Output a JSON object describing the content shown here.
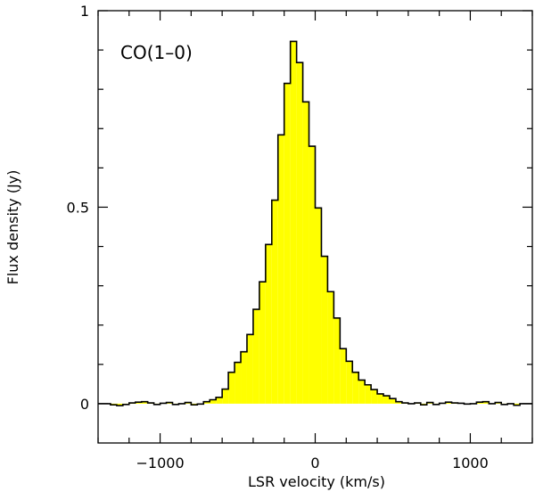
{
  "chart_data": {
    "type": "area",
    "step": true,
    "title": "",
    "annotation": "CO(1–0)",
    "xlabel": "LSR velocity (km/s)",
    "ylabel": "Flux density (Jy)",
    "xlim": [
      -1400,
      1400
    ],
    "ylim": [
      -0.1,
      1.0
    ],
    "xticks_major": [
      -1000,
      0,
      1000
    ],
    "xtick_labels": [
      "−1000",
      "0",
      "1000"
    ],
    "xticks_minor": [
      -1400,
      -1200,
      -800,
      -600,
      -400,
      -200,
      200,
      400,
      600,
      800,
      1200,
      1400
    ],
    "yticks_major": [
      0,
      0.5,
      1
    ],
    "ytick_labels": [
      "0",
      "0.5",
      "1"
    ],
    "yticks_minor": [
      0.1,
      0.2,
      0.3,
      0.4,
      0.6,
      0.7,
      0.8,
      0.9
    ],
    "fill_color": "#ffff00",
    "line_color": "#000000",
    "series": [
      {
        "name": "CO(1–0) spectrum",
        "bin_width": 40,
        "x": [
          -1400,
          -1360,
          -1320,
          -1280,
          -1240,
          -1200,
          -1160,
          -1120,
          -1080,
          -1040,
          -1000,
          -960,
          -920,
          -880,
          -840,
          -800,
          -760,
          -720,
          -680,
          -640,
          -600,
          -560,
          -520,
          -480,
          -440,
          -400,
          -360,
          -320,
          -280,
          -240,
          -200,
          -160,
          -120,
          -80,
          -40,
          0,
          40,
          80,
          120,
          160,
          200,
          240,
          280,
          320,
          360,
          400,
          440,
          480,
          520,
          560,
          600,
          640,
          680,
          720,
          760,
          800,
          840,
          880,
          920,
          960,
          1000,
          1040,
          1080,
          1120,
          1160,
          1200,
          1240,
          1280,
          1320,
          1360
        ],
        "values": [
          0.0,
          0.0,
          -0.003,
          -0.005,
          -0.002,
          0.002,
          0.004,
          0.005,
          0.002,
          -0.002,
          0.001,
          0.003,
          -0.002,
          0.0,
          0.003,
          -0.003,
          -0.001,
          0.005,
          0.01,
          0.016,
          0.037,
          0.08,
          0.105,
          0.132,
          0.176,
          0.24,
          0.31,
          0.405,
          0.518,
          0.684,
          0.815,
          0.922,
          0.868,
          0.768,
          0.655,
          0.498,
          0.375,
          0.285,
          0.218,
          0.14,
          0.108,
          0.08,
          0.06,
          0.048,
          0.036,
          0.025,
          0.02,
          0.013,
          0.005,
          0.002,
          0.0,
          0.002,
          -0.003,
          0.003,
          -0.002,
          0.001,
          0.004,
          0.002,
          0.001,
          -0.001,
          0.0,
          0.004,
          0.005,
          0.0,
          0.003,
          -0.002,
          0.0,
          -0.004,
          0.0,
          0.0
        ]
      }
    ]
  }
}
